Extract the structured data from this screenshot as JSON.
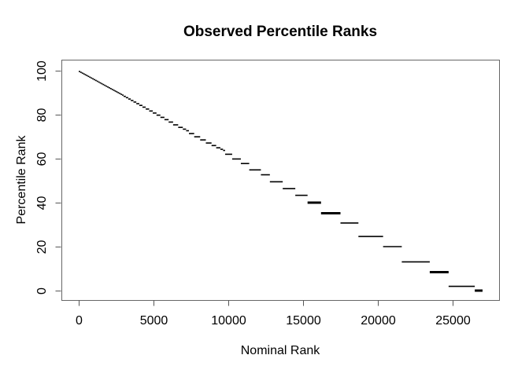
{
  "figure_title": "Observed Percentile Ranks",
  "colors": {
    "background": "#ffffff",
    "data_line": "#000000",
    "frame": "#666666",
    "tick": "#555555",
    "text": "#000000"
  },
  "chart_data": {
    "type": "line",
    "subtype": "step-segments",
    "title": "Observed Percentile Ranks",
    "xlabel": "Nominal Rank",
    "ylabel": "Percentile Rank",
    "xlim": [
      0,
      27000
    ],
    "ylim": [
      0,
      100
    ],
    "x_ticks": [
      0,
      5000,
      10000,
      15000,
      20000,
      25000
    ],
    "x_tick_labels": [
      "0",
      "5000",
      "10000",
      "15000",
      "20000",
      "25000"
    ],
    "y_ticks": [
      0,
      20,
      40,
      60,
      80,
      100
    ],
    "y_tick_labels": [
      "0",
      "20",
      "40",
      "60",
      "80",
      "100"
    ],
    "grid": false,
    "legend": "none",
    "steps_format": [
      "x_start",
      "x_end",
      "percentile_rank",
      "line_weight"
    ],
    "steps": [
      [
        0,
        100,
        99.63,
        1
      ],
      [
        100,
        200,
        99.26,
        1
      ],
      [
        200,
        300,
        98.89,
        1
      ],
      [
        300,
        400,
        98.52,
        1
      ],
      [
        400,
        500,
        98.15,
        1
      ],
      [
        500,
        600,
        97.78,
        1
      ],
      [
        600,
        700,
        97.41,
        1
      ],
      [
        700,
        800,
        97.04,
        1
      ],
      [
        800,
        900,
        96.67,
        1
      ],
      [
        900,
        1000,
        96.3,
        1
      ],
      [
        1000,
        1100,
        95.93,
        1
      ],
      [
        1100,
        1200,
        95.56,
        1
      ],
      [
        1200,
        1300,
        95.19,
        1
      ],
      [
        1300,
        1400,
        94.81,
        1
      ],
      [
        1400,
        1500,
        94.44,
        1
      ],
      [
        1500,
        1600,
        94.07,
        1
      ],
      [
        1600,
        1700,
        93.7,
        1
      ],
      [
        1700,
        1800,
        93.33,
        1
      ],
      [
        1800,
        1900,
        92.96,
        1
      ],
      [
        1900,
        2000,
        92.59,
        1
      ],
      [
        2000,
        2100,
        92.22,
        1
      ],
      [
        2100,
        2200,
        91.85,
        1
      ],
      [
        2200,
        2300,
        91.48,
        1
      ],
      [
        2300,
        2400,
        91.11,
        1
      ],
      [
        2400,
        2500,
        90.74,
        1
      ],
      [
        2500,
        2600,
        90.37,
        1
      ],
      [
        2600,
        2700,
        90.0,
        1
      ],
      [
        2700,
        2800,
        89.63,
        1
      ],
      [
        2800,
        2900,
        89.26,
        1
      ],
      [
        2900,
        3000,
        88.89,
        1
      ],
      [
        3000,
        3150,
        88.33,
        1
      ],
      [
        3150,
        3310,
        87.74,
        1
      ],
      [
        3310,
        3480,
        87.11,
        1
      ],
      [
        3480,
        3660,
        86.44,
        1
      ],
      [
        3660,
        3850,
        85.74,
        1
      ],
      [
        3850,
        4050,
        85.0,
        1
      ],
      [
        4050,
        4260,
        84.22,
        1
      ],
      [
        4260,
        4480,
        83.41,
        1
      ],
      [
        4480,
        4710,
        82.56,
        1
      ],
      [
        4710,
        4950,
        81.67,
        1
      ],
      [
        4950,
        5200,
        80.74,
        1
      ],
      [
        5200,
        5460,
        79.78,
        1
      ],
      [
        5460,
        5730,
        78.78,
        1
      ],
      [
        5730,
        6010,
        77.74,
        1
      ],
      [
        6010,
        6310,
        76.63,
        1
      ],
      [
        6310,
        6650,
        75.37,
        1
      ],
      [
        6650,
        6960,
        74.22,
        1
      ],
      [
        6960,
        7180,
        73.41,
        1
      ],
      [
        7180,
        7370,
        72.7,
        1
      ],
      [
        7370,
        7720,
        71.41,
        1
      ],
      [
        7720,
        8120,
        69.93,
        1
      ],
      [
        8120,
        8500,
        68.52,
        1
      ],
      [
        8500,
        8880,
        67.11,
        1
      ],
      [
        8880,
        9190,
        65.96,
        1
      ],
      [
        9190,
        9470,
        64.93,
        1
      ],
      [
        9470,
        9650,
        64.26,
        1
      ],
      [
        9650,
        9790,
        63.74,
        1
      ],
      [
        9790,
        10260,
        62.0,
        1
      ],
      [
        10260,
        10840,
        59.85,
        1
      ],
      [
        10840,
        11400,
        57.78,
        1
      ],
      [
        11400,
        12180,
        54.89,
        1
      ],
      [
        12180,
        12780,
        52.67,
        1
      ],
      [
        12780,
        13640,
        49.48,
        1
      ],
      [
        13640,
        14480,
        46.37,
        1
      ],
      [
        14480,
        15300,
        43.33,
        1
      ],
      [
        15300,
        16200,
        40.0,
        2
      ],
      [
        16200,
        17500,
        35.19,
        2
      ],
      [
        17500,
        18700,
        30.74,
        1
      ],
      [
        18700,
        20350,
        24.63,
        1
      ],
      [
        20350,
        21600,
        20.0,
        1
      ],
      [
        21600,
        23470,
        13.07,
        1
      ],
      [
        23470,
        24730,
        8.41,
        2
      ],
      [
        24730,
        26480,
        1.93,
        1
      ],
      [
        26480,
        27000,
        0.0,
        2
      ]
    ]
  }
}
